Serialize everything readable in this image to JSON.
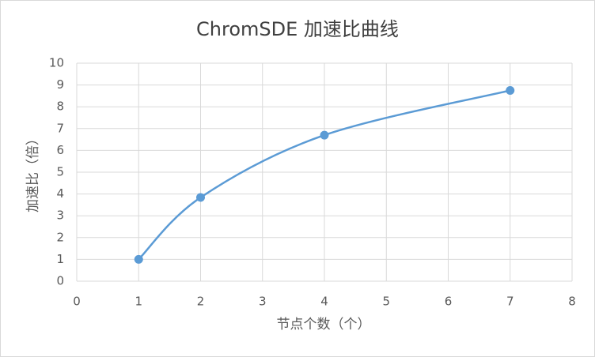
{
  "chart_data": {
    "type": "scatter",
    "title": "ChromSDE 加速比曲线",
    "x_label": "节点个数（个）",
    "y_label": "加速比（倍）",
    "x": [
      1,
      2,
      4,
      7
    ],
    "values": [
      1.0,
      3.84,
      6.7,
      8.75
    ],
    "color": "#5b9bd5",
    "smooth": true,
    "grid": true,
    "xlim": [
      0,
      8
    ],
    "xticks": [
      0,
      1,
      2,
      3,
      4,
      5,
      6,
      7,
      8
    ],
    "ylim": [
      0,
      10
    ],
    "yticks": [
      0,
      1,
      2,
      3,
      4,
      5,
      6,
      7,
      8,
      9,
      10
    ]
  }
}
